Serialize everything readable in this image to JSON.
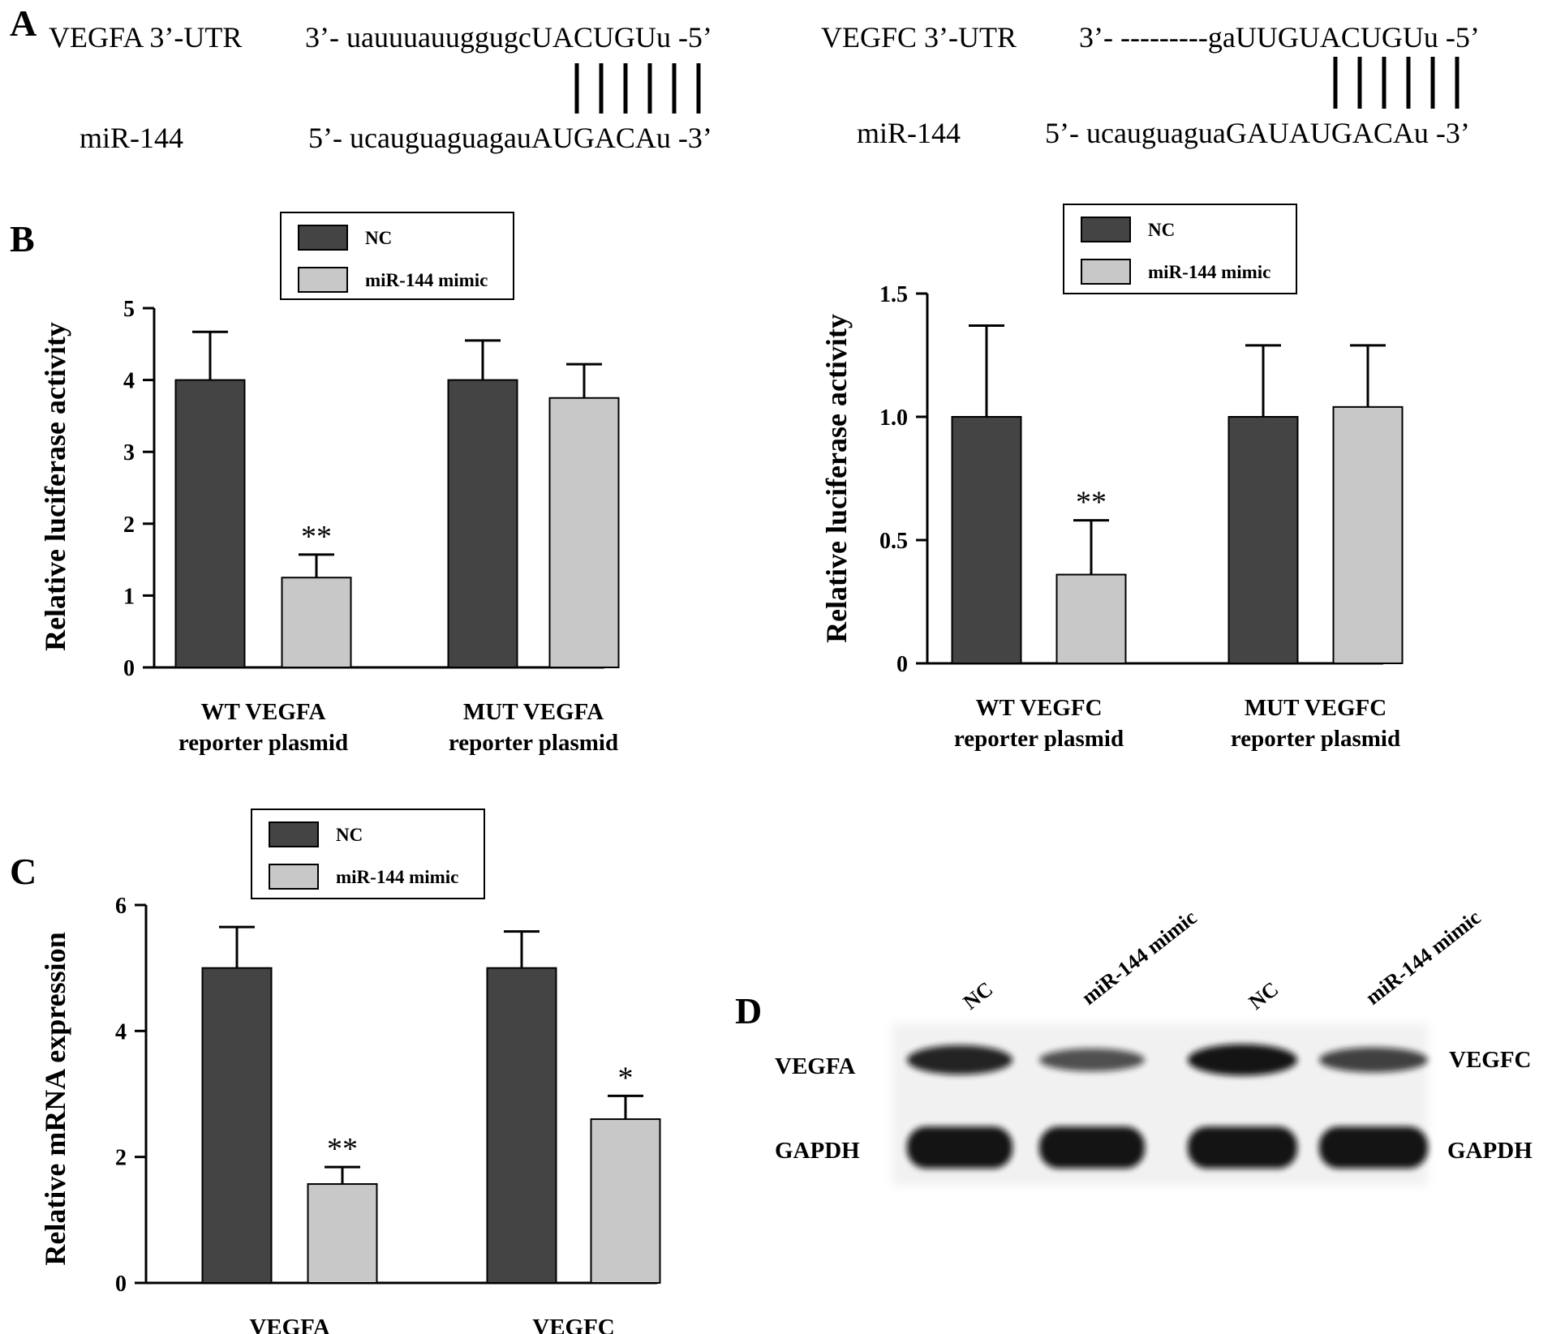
{
  "panel_a": {
    "letter": "A",
    "vegfa": {
      "target_label": "VEGFA 3’-UTR",
      "target_prefix": "3’- uauuuauuggugc",
      "target_site": "UACUGU",
      "target_suffix": "u -5’",
      "mir_label": "miR-144",
      "mir_prefix": "5’- ucauguaguagau",
      "mir_site": "AUGACA",
      "mir_suffix": "u -3’",
      "pair_count": 6
    },
    "vegfc": {
      "target_label": "VEGFC 3’-UTR",
      "target_prefix": "3’- ---------gaUUG",
      "target_site": "UACUGU",
      "target_suffix": "u -5’",
      "mir_label": "miR-144",
      "mir_prefix": "5’- ucauguaguaGAU",
      "mir_site": "AUGACA",
      "mir_suffix": "u -3’",
      "pair_count": 6
    }
  },
  "legend": {
    "nc": "NC",
    "mimic": "miR-144 mimic"
  },
  "colors": {
    "nc": "#444444",
    "mimic": "#c8c8c8",
    "axis": "#000000"
  },
  "chart_data": [
    {
      "id": "B-left",
      "panel_letter": "B",
      "type": "bar",
      "ylabel": "Relative luciferase activity",
      "ylim": [
        0,
        5
      ],
      "yticks": [
        0,
        1,
        2,
        3,
        4,
        5
      ],
      "ytick_labels": [
        "0",
        "1",
        "2",
        "3",
        "4",
        "5"
      ],
      "categories": [
        [
          "WT VEGFA",
          "reporter plasmid"
        ],
        [
          "MUT VEGFA",
          "reporter plasmid"
        ]
      ],
      "series": [
        {
          "name": "NC",
          "values": [
            4.0,
            4.0
          ],
          "errors": [
            0.67,
            0.55
          ]
        },
        {
          "name": "miR-144 mimic",
          "values": [
            1.25,
            3.75
          ],
          "errors": [
            0.32,
            0.47
          ]
        }
      ],
      "significance": [
        {
          "category": 0,
          "series": 1,
          "label": "**"
        }
      ],
      "legend_position": "top-left"
    },
    {
      "id": "B-right",
      "panel_letter": "",
      "type": "bar",
      "ylabel": "Relative luciferase activity",
      "ylim": [
        0,
        1.5
      ],
      "yticks": [
        0,
        0.5,
        1.0,
        1.5
      ],
      "ytick_labels": [
        "0",
        "0.5",
        "1.0",
        "1.5"
      ],
      "categories": [
        [
          "WT VEGFC",
          "reporter plasmid"
        ],
        [
          "MUT VEGFC",
          "reporter plasmid"
        ]
      ],
      "series": [
        {
          "name": "NC",
          "values": [
            1.0,
            1.0
          ],
          "errors": [
            0.37,
            0.29
          ]
        },
        {
          "name": "miR-144 mimic",
          "values": [
            0.36,
            1.04
          ],
          "errors": [
            0.22,
            0.25
          ]
        }
      ],
      "significance": [
        {
          "category": 0,
          "series": 1,
          "label": "**"
        }
      ],
      "legend_position": "top-left"
    },
    {
      "id": "C",
      "panel_letter": "C",
      "type": "bar",
      "ylabel": "Relative mRNA expression",
      "ylim": [
        0,
        6
      ],
      "yticks": [
        0,
        2,
        4,
        6
      ],
      "ytick_labels": [
        "0",
        "2",
        "4",
        "6"
      ],
      "categories": [
        [
          "VEGFA"
        ],
        [
          "VEGFC"
        ]
      ],
      "series": [
        {
          "name": "NC",
          "values": [
            5.0,
            5.0
          ],
          "errors": [
            0.65,
            0.58
          ]
        },
        {
          "name": "miR-144 mimic",
          "values": [
            1.57,
            2.6
          ],
          "errors": [
            0.27,
            0.37
          ]
        }
      ],
      "significance": [
        {
          "category": 0,
          "series": 1,
          "label": "**"
        },
        {
          "category": 1,
          "series": 1,
          "label": "*"
        }
      ],
      "legend_position": "top-left"
    }
  ],
  "panel_d": {
    "letter": "D",
    "lane_labels": [
      "NC",
      "miR-144 mimic",
      "NC",
      "miR-144 mimic"
    ],
    "row_labels_left": [
      "VEGFA",
      "GAPDH"
    ],
    "row_labels_right": [
      "VEGFC",
      "GAPDH"
    ],
    "band_intensity": {
      "VEGFA_row": [
        0.85,
        0.55,
        0.95,
        0.65
      ],
      "GAPDH_row": [
        0.95,
        0.95,
        0.95,
        0.95
      ]
    }
  }
}
